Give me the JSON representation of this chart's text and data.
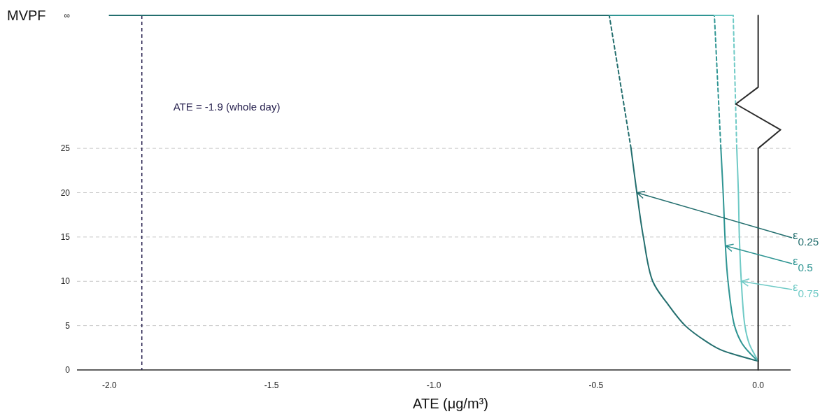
{
  "chart_data": {
    "type": "line",
    "xlabel": "ATE (μg/m³)",
    "ylabel": "MVPF",
    "xlim": [
      -2.1,
      0.1
    ],
    "xticks": [
      {
        "value": -2,
        "label": "-2.0"
      },
      -1.5,
      {
        "value": -1,
        "label": "-1.0"
      },
      -0.5,
      {
        "value": 0,
        "label": "0.0"
      }
    ],
    "ylim": [
      0,
      40
    ],
    "yticks": [
      0,
      5,
      10,
      15,
      20,
      25,
      {
        "value": 40,
        "label": "∞"
      }
    ],
    "grid": "y",
    "marker": "none",
    "series": [
      {
        "color": "#236e6e",
        "line_style": "solid",
        "x": [
          0,
          -0.05,
          -0.117,
          -0.16,
          -0.225,
          -0.28,
          -0.325,
          -0.354,
          -0.374,
          -0.392
        ],
        "values": [
          1,
          1.5,
          2.3,
          3.2,
          5,
          7.5,
          10,
          15,
          20,
          25
        ]
      },
      {
        "color": "#236e6e",
        "line_style": "dashed",
        "x": [
          -0.392,
          -0.459
        ],
        "values": [
          25,
          40
        ]
      },
      {
        "color": "#236e6e",
        "line_style": "solid",
        "x": [
          -2,
          -0.459
        ],
        "values": [
          40,
          40
        ]
      },
      {
        "color": "#2f9593",
        "line_style": "solid",
        "x": [
          0,
          -0.023,
          -0.05,
          -0.073,
          -0.093,
          -0.101,
          -0.108,
          -0.115
        ],
        "values": [
          1,
          1.8,
          3,
          5,
          10,
          14,
          20,
          25
        ]
      },
      {
        "color": "#2f9593",
        "line_style": "dashed",
        "x": [
          -0.115,
          -0.135
        ],
        "values": [
          25,
          40
        ]
      },
      {
        "color": "#2f9593",
        "line_style": "solid",
        "x": [
          -0.459,
          -0.135
        ],
        "values": [
          40,
          40
        ]
      },
      {
        "color": "#6fcac6",
        "line_style": "solid",
        "x": [
          0,
          -0.012,
          -0.028,
          -0.041,
          -0.052,
          -0.058,
          -0.061,
          -0.066
        ],
        "values": [
          1,
          1.8,
          3,
          5,
          10,
          15,
          20,
          25
        ]
      },
      {
        "color": "#6fcac6",
        "line_style": "dashed",
        "x": [
          -0.066,
          -0.077
        ],
        "values": [
          25,
          40
        ]
      },
      {
        "color": "#6fcac6",
        "line_style": "solid",
        "x": [
          -0.135,
          -0.077
        ],
        "values": [
          40,
          40
        ]
      },
      {
        "color": "#2b2b2b",
        "line_style": "solid",
        "x": [
          0,
          0,
          0.069,
          -0.069,
          0,
          0
        ],
        "values": [
          0,
          25,
          27.1,
          30,
          31.9,
          40
        ]
      }
    ],
    "ref_lines": [
      {
        "axis": "x",
        "value": -1.9,
        "label": "ATE = -1.9 (whole day)",
        "color": "#27214f",
        "line_style": "dashed"
      }
    ],
    "annotations": [
      {
        "text": "ε$_{0.25}$",
        "x": -0.374,
        "y": 20
      },
      {
        "text": "ε$_{0.5}$",
        "x": -0.101,
        "y": 14
      },
      {
        "text": "ε$_{0.75}$",
        "x": -0.052,
        "y": 10
      }
    ]
  }
}
